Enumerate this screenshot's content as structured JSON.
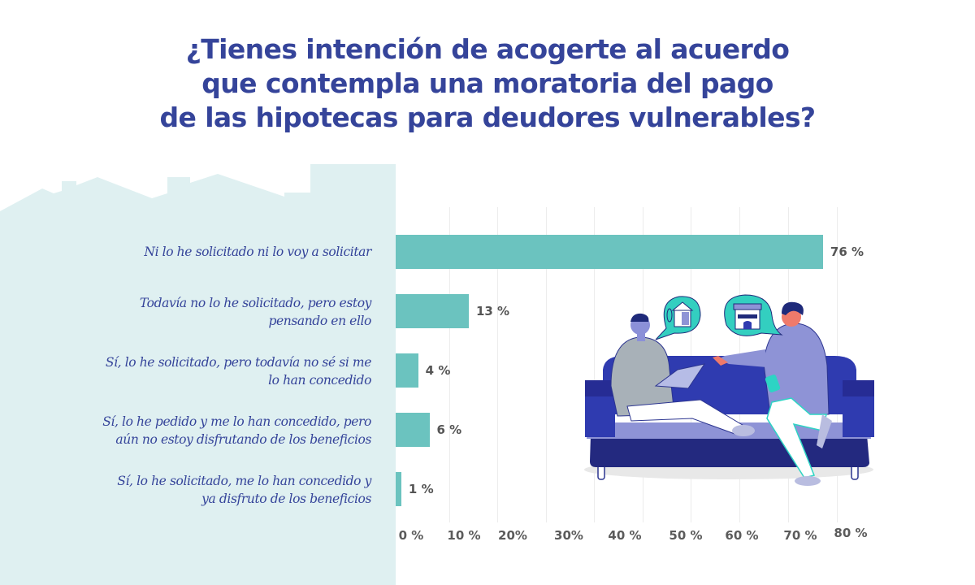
{
  "title": {
    "lines": [
      "¿Tienes intención de acogerte al acuerdo",
      "que contempla una moratoria del pago",
      "de las hipotecas para deudores vulnerables?"
    ]
  },
  "colors": {
    "title": "#35449a",
    "bar": "#6bc3bf",
    "panel": "#dff0f1",
    "value_text": "#555555",
    "gridline": "#ececec"
  },
  "bars": [
    {
      "label_lines": [
        "Ni lo he solicitado ni lo voy a solicitar"
      ],
      "value": 76,
      "value_label": "76 %"
    },
    {
      "label_lines": [
        "Todavía no lo he solicitado, pero estoy",
        "pensando en ello"
      ],
      "value": 13,
      "value_label": "13 %"
    },
    {
      "label_lines": [
        "Sí, lo he solicitado, pero todavía no sé si me",
        "lo han concedido"
      ],
      "value": 4,
      "value_label": "4 %"
    },
    {
      "label_lines": [
        "Sí, lo he pedido y me lo han concedido, pero",
        "aún no estoy disfrutando de los beneficios"
      ],
      "value": 6,
      "value_label": "6 %"
    },
    {
      "label_lines": [
        "Sí, lo he solicitado, me lo han concedido y",
        "ya disfruto de los beneficios"
      ],
      "value": 1,
      "value_label": "1 %"
    }
  ],
  "x_axis": {
    "ticks": [
      "0 %",
      "10 %",
      "20%",
      "30%",
      "40 %",
      "50 %",
      "60 %",
      "70 %",
      "80 %"
    ]
  },
  "illustration": {
    "description": "two-people-on-sofa-with-house-and-shop-speech-bubbles"
  },
  "chart_data": {
    "type": "bar",
    "orientation": "horizontal",
    "title": "¿Tienes intención de acogerte al acuerdo que contempla una moratoria del pago de las hipotecas para deudores vulnerables?",
    "categories": [
      "Ni lo he solicitado ni lo voy a solicitar",
      "Todavía no lo he solicitado, pero estoy pensando en ello",
      "Sí, lo he solicitado, pero todavía no sé si me lo han concedido",
      "Sí, lo he pedido y me lo han concedido, pero aún no estoy disfrutando de los beneficios",
      "Sí, lo he solicitado, me lo han concedido y ya disfruto de los beneficios"
    ],
    "values": [
      76,
      13,
      4,
      6,
      1
    ],
    "data_labels": [
      "76 %",
      "13 %",
      "4 %",
      "6 %",
      "1 %"
    ],
    "xlabel": "",
    "ylabel": "",
    "xlim": [
      0,
      80
    ],
    "x_ticks": [
      "0 %",
      "10 %",
      "20%",
      "30%",
      "40 %",
      "50 %",
      "60 %",
      "70 %",
      "80 %"
    ],
    "grid": "vertical",
    "legend": "none",
    "unit": "%"
  }
}
